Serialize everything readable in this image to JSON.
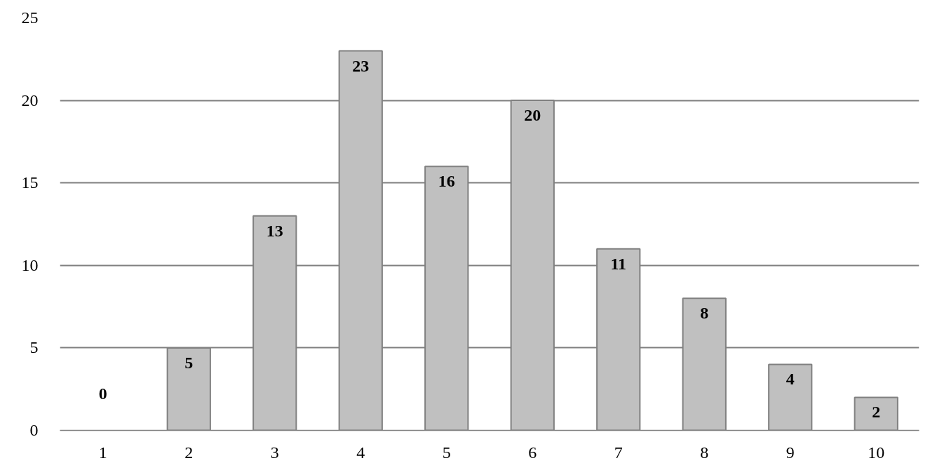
{
  "chart_data": {
    "type": "bar",
    "categories": [
      "1",
      "2",
      "3",
      "4",
      "5",
      "6",
      "7",
      "8",
      "9",
      "10"
    ],
    "values": [
      0,
      5,
      13,
      23,
      16,
      20,
      11,
      8,
      4,
      2
    ],
    "color": "#c0c0c0",
    "ylim": [
      0,
      25
    ],
    "yticks": [
      0,
      5,
      10,
      15,
      20,
      25
    ],
    "grid": "y",
    "data_labels": true
  }
}
